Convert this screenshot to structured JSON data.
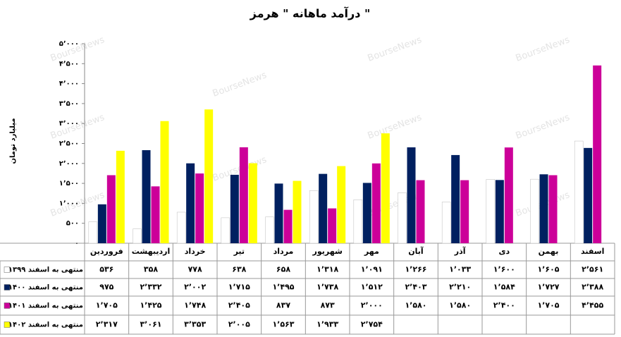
{
  "chart_data": {
    "type": "bar",
    "title": "درآمد ماهانه \" هرمز \"",
    "y_label": "میلیارد تومان",
    "watermark": "BourseNews",
    "categories": [
      "فروردین",
      "اردیبهشت",
      "خرداد",
      "تیر",
      "مرداد",
      "شهریور",
      "مهر",
      "آبان",
      "آذر",
      "دی",
      "بهمن",
      "اسفند"
    ],
    "series": [
      {
        "name": "منتهی به اسفند ۱۳۹۹",
        "color": "#ffffff",
        "values": [
          536,
          358,
          778,
          638,
          658,
          1318,
          1091,
          1266,
          1033,
          1600,
          1605,
          2561
        ],
        "value_labels": [
          "۵۳۶",
          "۳۵۸",
          "۷۷۸",
          "۶۳۸",
          "۶۵۸",
          "۱٬۳۱۸",
          "۱٬۰۹۱",
          "۱٬۲۶۶",
          "۱٬۰۳۳",
          "۱٬۶۰۰",
          "۱٬۶۰۵",
          "۲٬۵۶۱"
        ]
      },
      {
        "name": "منتهی به اسفند ۱۴۰۰",
        "color": "#002060",
        "values": [
          975,
          2332,
          2002,
          1715,
          1495,
          1738,
          1512,
          2403,
          2210,
          1584,
          1727,
          2388
        ],
        "value_labels": [
          "۹۷۵",
          "۲٬۳۳۲",
          "۲٬۰۰۲",
          "۱٬۷۱۵",
          "۱٬۴۹۵",
          "۱٬۷۳۸",
          "۱٬۵۱۲",
          "۲٬۴۰۳",
          "۲٬۲۱۰",
          "۱٬۵۸۴",
          "۱٬۷۲۷",
          "۲٬۳۸۸"
        ]
      },
      {
        "name": "منتهی به اسفند ۱۴۰۱",
        "color": "#cc0099",
        "values": [
          1705,
          1425,
          1748,
          2405,
          837,
          873,
          2000,
          1580,
          1580,
          2400,
          1705,
          4455
        ],
        "value_labels": [
          "۱٬۷۰۵",
          "۱٬۴۲۵",
          "۱٬۷۴۸",
          "۲٬۴۰۵",
          "۸۳۷",
          "۸۷۳",
          "۲٬۰۰۰",
          "۱٬۵۸۰",
          "۱٬۵۸۰",
          "۲٬۴۰۰",
          "۱٬۷۰۵",
          "۴٬۴۵۵"
        ]
      },
      {
        "name": "منتهی به اسفند ۱۴۰۲",
        "color": "#ffff00",
        "values": [
          2317,
          3061,
          3353,
          2005,
          1563,
          1933,
          2754,
          null,
          null,
          null,
          null,
          null
        ],
        "value_labels": [
          "۲٬۳۱۷",
          "۳٬۰۶۱",
          "۳٬۳۵۳",
          "۲٬۰۰۵",
          "۱٬۵۶۳",
          "۱٬۹۳۳",
          "۲٬۷۵۴",
          null,
          null,
          null,
          null,
          null
        ]
      }
    ],
    "ylim": [
      0,
      5000
    ],
    "yticks": [
      {
        "value": 0,
        "label": "۰"
      },
      {
        "value": 500,
        "label": "۵۰۰"
      },
      {
        "value": 1000,
        "label": "۱٬۰۰۰"
      },
      {
        "value": 1500,
        "label": "۱٬۵۰۰"
      },
      {
        "value": 2000,
        "label": "۲٬۰۰۰"
      },
      {
        "value": 2500,
        "label": "۲٬۵۰۰"
      },
      {
        "value": 3000,
        "label": "۳٬۰۰۰"
      },
      {
        "value": 3500,
        "label": "۳٬۵۰۰"
      },
      {
        "value": 4000,
        "label": "۴٬۰۰۰"
      },
      {
        "value": 4500,
        "label": "۴٬۵۰۰"
      },
      {
        "value": 5000,
        "label": "۵٬۰۰۰"
      }
    ],
    "grid": false
  }
}
